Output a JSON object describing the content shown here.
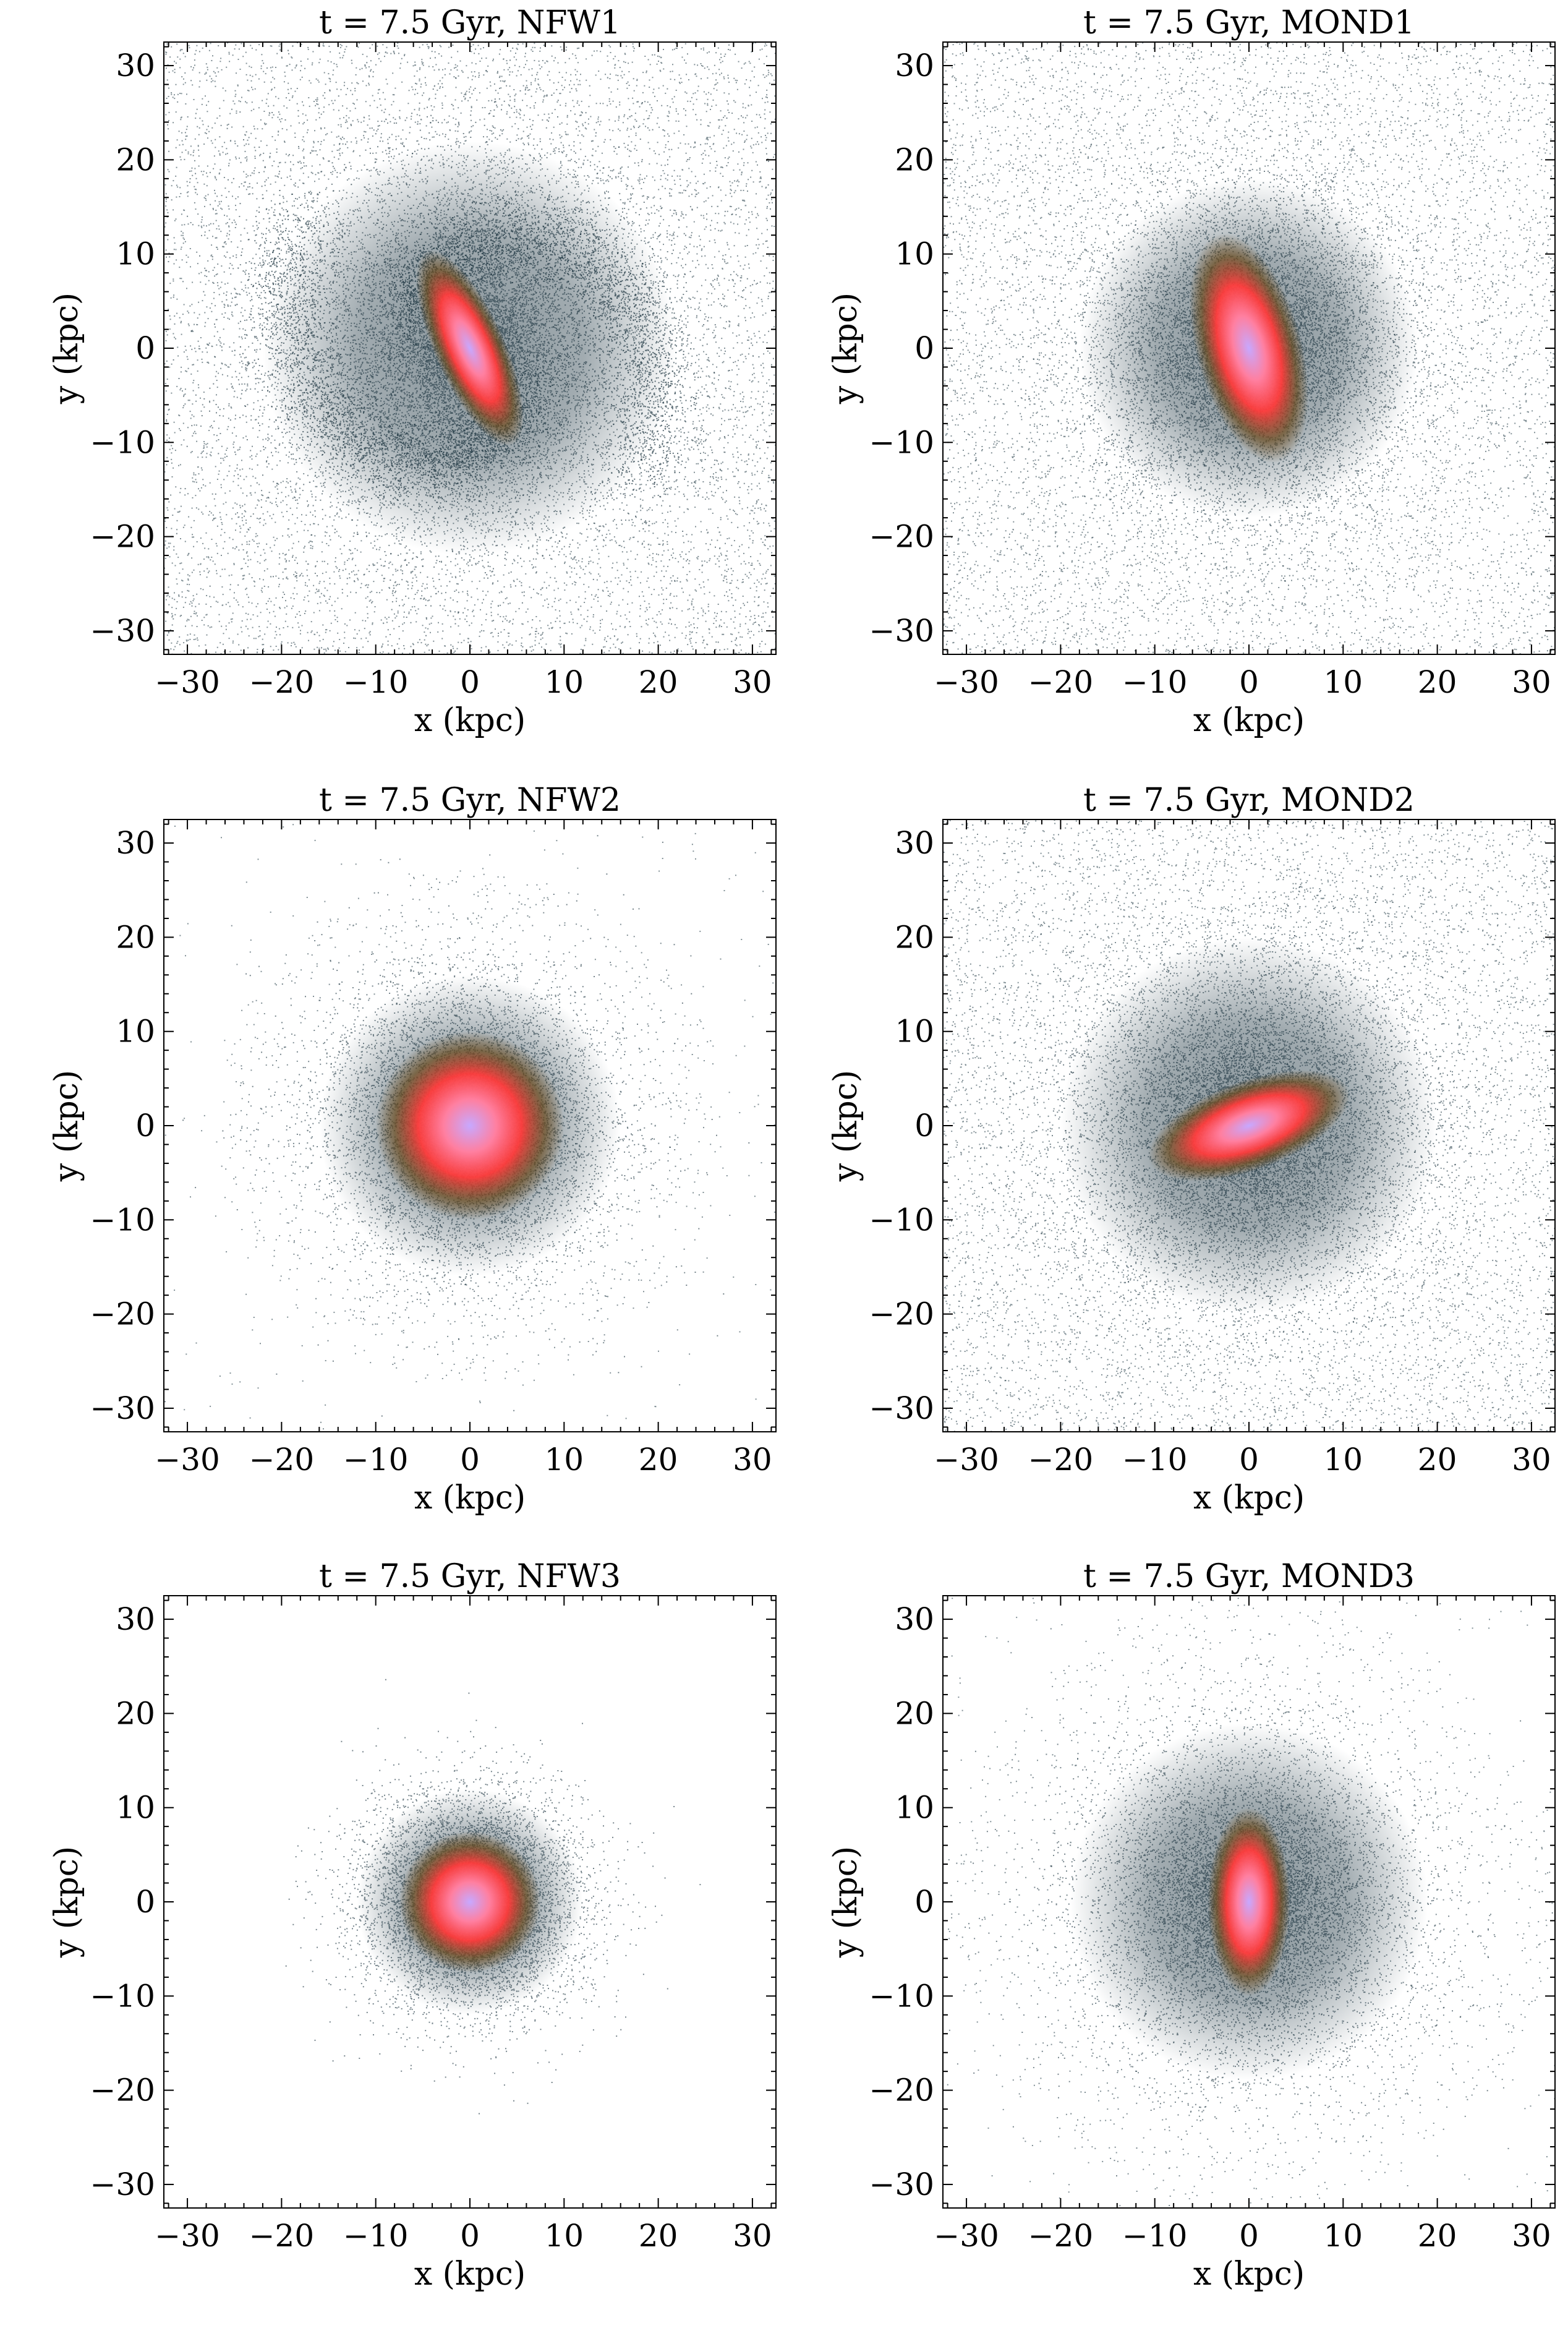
{
  "figure": {
    "panels": [
      {
        "title": "t = 7.5 Gyr, NFW1",
        "xlabel": "x (kpc)",
        "ylabel": "y (kpc)",
        "morphology": {
          "type": "bar-spiral",
          "disk_radius_kpc": 22,
          "background": "dense",
          "core_rx_kpc": 3.0,
          "core_ry_kpc": 9.0,
          "core_angle_deg": 24,
          "arms": true
        }
      },
      {
        "title": "t = 7.5 Gyr, MOND1",
        "xlabel": "x (kpc)",
        "ylabel": "y (kpc)",
        "morphology": {
          "type": "bar",
          "disk_radius_kpc": 18,
          "background": "dense",
          "core_rx_kpc": 4.5,
          "core_ry_kpc": 10.0,
          "core_angle_deg": 15,
          "arms": false
        }
      },
      {
        "title": "t = 7.5 Gyr, NFW2",
        "xlabel": "x (kpc)",
        "ylabel": "y (kpc)",
        "morphology": {
          "type": "disk",
          "disk_radius_kpc": 16,
          "background": "sparse",
          "core_rx_kpc": 8.0,
          "core_ry_kpc": 8.0,
          "core_angle_deg": 0,
          "arms": false
        }
      },
      {
        "title": "t = 7.5 Gyr, MOND2",
        "xlabel": "x (kpc)",
        "ylabel": "y (kpc)",
        "morphology": {
          "type": "bar",
          "disk_radius_kpc": 20,
          "background": "dense",
          "core_rx_kpc": 9.0,
          "core_ry_kpc": 3.8,
          "core_angle_deg": 20,
          "arms": false
        }
      },
      {
        "title": "t = 7.5 Gyr, NFW3",
        "xlabel": "x (kpc)",
        "ylabel": "y (kpc)",
        "morphology": {
          "type": "disk",
          "disk_radius_kpc": 12,
          "background": "none",
          "core_rx_kpc": 6.0,
          "core_ry_kpc": 6.0,
          "core_angle_deg": 0,
          "arms": false
        }
      },
      {
        "title": "t = 7.5 Gyr, MOND3",
        "xlabel": "x (kpc)",
        "ylabel": "y (kpc)",
        "morphology": {
          "type": "bar",
          "disk_radius_kpc": 19,
          "background": "sparse",
          "core_rx_kpc": 3.5,
          "core_ry_kpc": 8.0,
          "core_angle_deg": 0,
          "arms": false
        }
      }
    ]
  },
  "chart_data": [
    {
      "type": "heatmap",
      "title": "t = 7.5 Gyr, NFW1",
      "xlabel": "x (kpc)",
      "ylabel": "y (kpc)",
      "xlim": [
        -32.5,
        32.5
      ],
      "ylim": [
        -32.5,
        32.5
      ],
      "xticks": [
        -30,
        -20,
        -10,
        0,
        10,
        20,
        30
      ],
      "yticks": [
        -30,
        -20,
        -10,
        0,
        10,
        20,
        30
      ],
      "xtick_labels": [
        "−30",
        "−20",
        "−10",
        "0",
        "10",
        "20",
        "30"
      ],
      "ytick_labels": [
        "−30",
        "−20",
        "−10",
        "0",
        "10",
        "20",
        "30"
      ]
    },
    {
      "type": "heatmap",
      "title": "t = 7.5 Gyr, MOND1",
      "xlabel": "x (kpc)",
      "ylabel": "y (kpc)",
      "xlim": [
        -32.5,
        32.5
      ],
      "ylim": [
        -32.5,
        32.5
      ],
      "xticks": [
        -30,
        -20,
        -10,
        0,
        10,
        20,
        30
      ],
      "yticks": [
        -30,
        -20,
        -10,
        0,
        10,
        20,
        30
      ],
      "xtick_labels": [
        "−30",
        "−20",
        "−10",
        "0",
        "10",
        "20",
        "30"
      ],
      "ytick_labels": [
        "−30",
        "−20",
        "−10",
        "0",
        "10",
        "20",
        "30"
      ]
    },
    {
      "type": "heatmap",
      "title": "t = 7.5 Gyr, NFW2",
      "xlabel": "x (kpc)",
      "ylabel": "y (kpc)",
      "xlim": [
        -32.5,
        32.5
      ],
      "ylim": [
        -32.5,
        32.5
      ],
      "xticks": [
        -30,
        -20,
        -10,
        0,
        10,
        20,
        30
      ],
      "yticks": [
        -30,
        -20,
        -10,
        0,
        10,
        20,
        30
      ],
      "xtick_labels": [
        "−30",
        "−20",
        "−10",
        "0",
        "10",
        "20",
        "30"
      ],
      "ytick_labels": [
        "−30",
        "−20",
        "−10",
        "0",
        "10",
        "20",
        "30"
      ]
    },
    {
      "type": "heatmap",
      "title": "t = 7.5 Gyr, MOND2",
      "xlabel": "x (kpc)",
      "ylabel": "y (kpc)",
      "xlim": [
        -32.5,
        32.5
      ],
      "ylim": [
        -32.5,
        32.5
      ],
      "xticks": [
        -30,
        -20,
        -10,
        0,
        10,
        20,
        30
      ],
      "yticks": [
        -30,
        -20,
        -10,
        0,
        10,
        20,
        30
      ],
      "xtick_labels": [
        "−30",
        "−20",
        "−10",
        "0",
        "10",
        "20",
        "30"
      ],
      "ytick_labels": [
        "−30",
        "−20",
        "−10",
        "0",
        "10",
        "20",
        "30"
      ]
    },
    {
      "type": "heatmap",
      "title": "t = 7.5 Gyr, NFW3",
      "xlabel": "x (kpc)",
      "ylabel": "y (kpc)",
      "xlim": [
        -32.5,
        32.5
      ],
      "ylim": [
        -32.5,
        32.5
      ],
      "xticks": [
        -30,
        -20,
        -10,
        0,
        10,
        20,
        30
      ],
      "yticks": [
        -30,
        -20,
        -10,
        0,
        10,
        20,
        30
      ],
      "xtick_labels": [
        "−30",
        "−20",
        "−10",
        "0",
        "10",
        "20",
        "30"
      ],
      "ytick_labels": [
        "−30",
        "−20",
        "−10",
        "0",
        "10",
        "20",
        "30"
      ]
    },
    {
      "type": "heatmap",
      "title": "t = 7.5 Gyr, MOND3",
      "xlabel": "x (kpc)",
      "ylabel": "y (kpc)",
      "xlim": [
        -32.5,
        32.5
      ],
      "ylim": [
        -32.5,
        32.5
      ],
      "xticks": [
        -30,
        -20,
        -10,
        0,
        10,
        20,
        30
      ],
      "yticks": [
        -30,
        -20,
        -10,
        0,
        10,
        20,
        30
      ],
      "xtick_labels": [
        "−30",
        "−20",
        "−10",
        "0",
        "10",
        "20",
        "30"
      ],
      "ytick_labels": [
        "−30",
        "−20",
        "−10",
        "0",
        "10",
        "20",
        "30"
      ]
    }
  ],
  "colors": {
    "particle": "#1c3440",
    "density_mid": "#6b4a1c",
    "density_high": "#ff3b3b",
    "density_peak": "#c7a8ff",
    "axis": "#000000",
    "background": "#ffffff"
  }
}
